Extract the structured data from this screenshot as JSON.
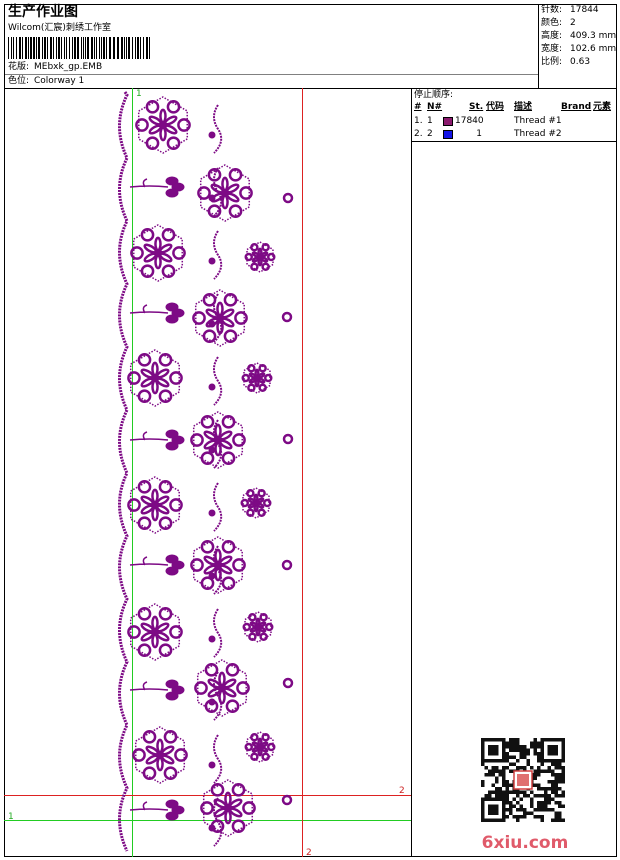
{
  "header": {
    "title": "生产作业图",
    "studio": "Wilcom(汇宸)刺绣工作室",
    "design_label": "花版:",
    "design_file": "MEbxk_gp.EMB",
    "colorway_label": "色位:",
    "colorway": "Colorway 1"
  },
  "info": [
    {
      "label": "针数:",
      "value": "17844"
    },
    {
      "label": "颜色:",
      "value": "2"
    },
    {
      "label": "高度:",
      "value": "409.3 mm"
    },
    {
      "label": "宽度:",
      "value": "102.6 mm"
    },
    {
      "label": "比例:",
      "value": "0.63"
    }
  ],
  "stop_sequence": {
    "title": "停止顺序:",
    "columns": [
      "#",
      "N#",
      "St.",
      "代码",
      "描述",
      "Brand",
      "元素"
    ],
    "rows": [
      {
        "index": "1.",
        "needle": "1",
        "color": "#8b1a6e",
        "stitches": "17840",
        "description": "Thread #1"
      },
      {
        "index": "2.",
        "needle": "2",
        "color": "#1414e6",
        "stitches": "1",
        "description": "Thread #2"
      }
    ]
  },
  "guides": {
    "top_green": "1",
    "right_red": "2",
    "left_green": "1",
    "bottom_red": "2"
  },
  "watermark": "6xiu.com"
}
